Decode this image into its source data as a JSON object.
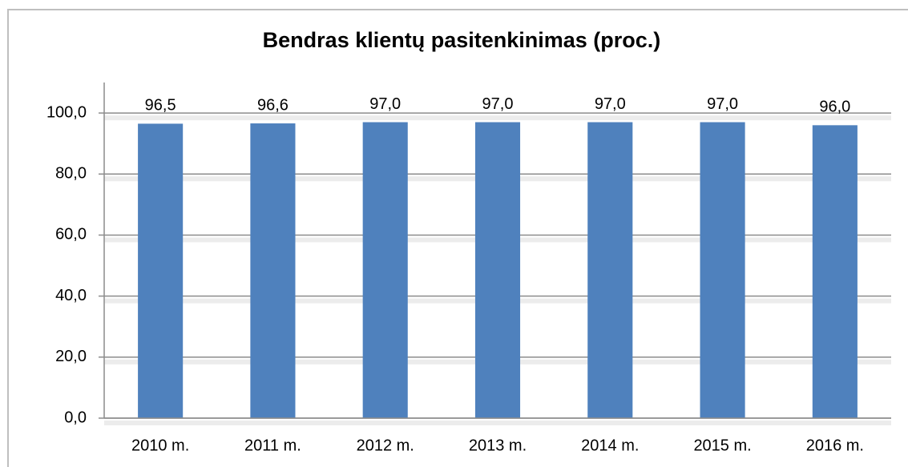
{
  "chart_data": {
    "type": "bar",
    "title": "Bendras klientų pasitenkinimas (proc.)",
    "categories": [
      "2010 m.",
      "2011 m.",
      "2012 m.",
      "2013 m.",
      "2014 m.",
      "2015 m.",
      "2016 m."
    ],
    "values": [
      96.5,
      96.6,
      97,
      97,
      97,
      97,
      96
    ],
    "value_labels": [
      "96,5",
      "96,6",
      "97,0",
      "97,0",
      "97,0",
      "97,0",
      "96,0"
    ],
    "color": "#4f81bd",
    "ylim": [
      0,
      110
    ],
    "yticks": [
      {
        "value": 0,
        "label": "0,0"
      },
      {
        "value": 20,
        "label": "20,0"
      },
      {
        "value": 40,
        "label": "40,0"
      },
      {
        "value": 60,
        "label": "60,0"
      },
      {
        "value": 80,
        "label": "80,0"
      },
      {
        "value": 100,
        "label": "100,0"
      }
    ],
    "grid": true
  }
}
